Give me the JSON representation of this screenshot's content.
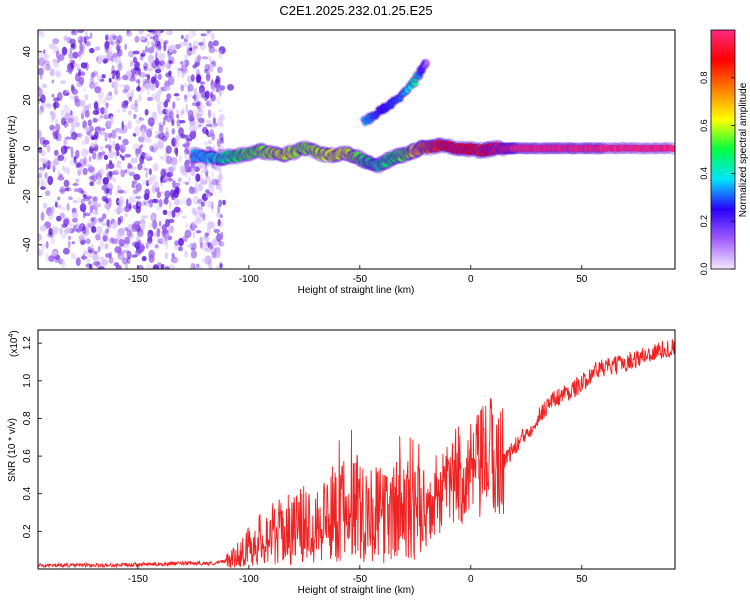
{
  "title": "C2E1.2025.232.01.25.E25",
  "colors": {
    "snr_line": "#ee2222",
    "noise": "#7b1fd6",
    "colorbar_stops": [
      "#f4e8ff",
      "#a05cff",
      "#2a00ff",
      "#00e5ff",
      "#00ff40",
      "#ffff00",
      "#ff8000",
      "#ff0000",
      "#ff2a80"
    ]
  },
  "chart_data": [
    {
      "type": "heatmap",
      "title": "C2E1.2025.232.01.25.E25",
      "xlabel": "Height of straight line (km)",
      "ylabel": "Frequency (Hz)",
      "xlim": [
        -195,
        92
      ],
      "ylim": [
        -50,
        49
      ],
      "xticks": [
        -150,
        -100,
        -50,
        0,
        50
      ],
      "xtick_labels": [
        "-150",
        "-100",
        "-50",
        "0",
        "50"
      ],
      "yticks": [
        -40,
        -20,
        0,
        20,
        40
      ],
      "ytick_labels": [
        "-40",
        "-20",
        "0",
        "20",
        "40"
      ],
      "colorbar": {
        "label": "Normalized spectral amplitude",
        "range": [
          0,
          1
        ],
        "ticks": [
          0,
          0.2,
          0.4,
          0.6,
          0.8
        ],
        "tick_labels": [
          "0.0",
          "0.2",
          "0.4",
          "0.6",
          "0.8"
        ]
      },
      "noise_region_x": [
        -195,
        -112
      ],
      "main_track": {
        "x": [
          -125,
          -115,
          -105,
          -95,
          -85,
          -75,
          -65,
          -55,
          -48,
          -42,
          -35,
          -28,
          -22,
          -15,
          -5,
          5,
          12,
          20,
          40,
          60,
          92
        ],
        "y": [
          -3,
          -4,
          -3,
          -1,
          -3,
          0,
          -3,
          -2,
          -5,
          -7,
          -4,
          -2,
          0,
          1,
          0,
          -1,
          0,
          0,
          0,
          0,
          0
        ],
        "amplitude": [
          0.35,
          0.4,
          0.5,
          0.55,
          0.6,
          0.55,
          0.6,
          0.6,
          0.5,
          0.45,
          0.5,
          0.55,
          0.75,
          0.85,
          0.9,
          0.85,
          0.95,
          1.0,
          1.0,
          1.0,
          1.0
        ]
      },
      "secondary_track": {
        "x": [
          -48,
          -40,
          -32,
          -25,
          -20
        ],
        "y": [
          11,
          16,
          21,
          28,
          36
        ],
        "amplitude": [
          0.35,
          0.25,
          0.3,
          0.45,
          0.1
        ]
      }
    },
    {
      "type": "line",
      "xlabel": "Height of straight line (km)",
      "ylabel": "SNR (10 * v/v)",
      "y_multiplier": "(x10",
      "y_multiplier_exp": "4",
      "y_multiplier_close": ")",
      "xlim": [
        -195,
        92
      ],
      "ylim": [
        0,
        1.27
      ],
      "xticks": [
        -150,
        -100,
        -50,
        0,
        50
      ],
      "xtick_labels": [
        "-150",
        "-100",
        "-50",
        "0",
        "50"
      ],
      "yticks": [
        0.2,
        0.4,
        0.6,
        0.8,
        1.0,
        1.2
      ],
      "ytick_labels": [
        "0.2",
        "0.4",
        "0.6",
        "0.8",
        "1.0",
        "1.2"
      ],
      "series": [
        {
          "name": "SNR",
          "x": [
            -195,
            -160,
            -130,
            -115,
            -108,
            -100,
            -92,
            -85,
            -78,
            -72,
            -65,
            -60,
            -55,
            -50,
            -45,
            -40,
            -35,
            -30,
            -25,
            -20,
            -15,
            -10,
            -5,
            0,
            5,
            8,
            12,
            18,
            25,
            30,
            35,
            40,
            45,
            50,
            55,
            60,
            65,
            70,
            75,
            80,
            85,
            92
          ],
          "y": [
            0.02,
            0.02,
            0.03,
            0.03,
            0.05,
            0.12,
            0.18,
            0.2,
            0.22,
            0.25,
            0.28,
            0.3,
            0.32,
            0.35,
            0.3,
            0.28,
            0.3,
            0.32,
            0.3,
            0.28,
            0.35,
            0.45,
            0.5,
            0.5,
            0.55,
            0.62,
            0.55,
            0.62,
            0.72,
            0.8,
            0.88,
            0.92,
            0.95,
            0.98,
            1.05,
            1.07,
            1.08,
            1.1,
            1.12,
            1.14,
            1.16,
            1.18
          ]
        }
      ]
    }
  ]
}
